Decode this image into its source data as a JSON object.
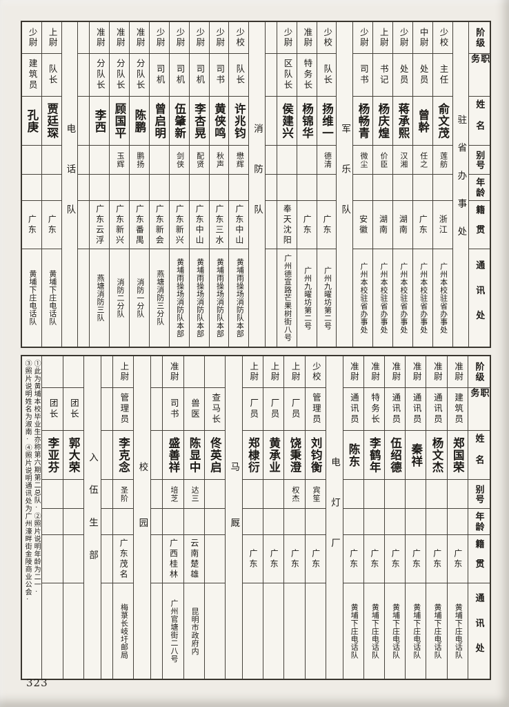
{
  "page": {
    "number": "323",
    "description": "黄埔军校同学录 roster page, two vertical-text tables read right-to-left"
  },
  "colors": {
    "page_background": "#efece6",
    "paper": "#f7f5ef",
    "grid_line": "#45413a",
    "text": "#1c1a17"
  },
  "header_column": {
    "labels": [
      "阶级",
      "职务",
      "姓名",
      "别号",
      "年龄",
      "籍贯",
      "通讯处"
    ]
  },
  "tables": [
    {
      "name": "top-roster",
      "columns": [
        {
          "type": "header"
        },
        {
          "type": "label",
          "label": "驻省办事处"
        },
        {
          "type": "person",
          "rank": "少校",
          "position": "主任",
          "name": "俞文茂",
          "alias": "莲舫",
          "age": "",
          "native": "浙江",
          "address": "广州本校驻省办事处"
        },
        {
          "type": "person",
          "rank": "中尉",
          "position": "处员",
          "name": "曾幹",
          "alias": "任之",
          "age": "",
          "native": "广东",
          "address": "广州本校驻省办事处"
        },
        {
          "type": "person",
          "rank": "少尉",
          "position": "处员",
          "name": "蒋承熙",
          "alias": "汉湘",
          "age": "",
          "native": "湖南",
          "address": "广州本校驻省办事处"
        },
        {
          "type": "person",
          "rank": "上尉",
          "position": "书记",
          "name": "杨庆煌",
          "alias": "价臣",
          "age": "",
          "native": "湖南",
          "address": "广州本校驻省办事处"
        },
        {
          "type": "person",
          "rank": "少尉",
          "position": "司书",
          "name": "杨畅青",
          "alias": "微尘",
          "age": "",
          "native": "安徽",
          "address": "广州本校驻省办事处"
        },
        {
          "type": "label",
          "label": "军乐队"
        },
        {
          "type": "person",
          "rank": "少校",
          "position": "队长",
          "name": "扬维一",
          "alias": "德清",
          "age": "",
          "native": "广东",
          "address": "广州九曜坊第二号"
        },
        {
          "type": "person",
          "rank": "准尉",
          "position": "特务长",
          "name": "杨锦华",
          "alias": "",
          "age": "",
          "native": "广东",
          "address": "广州九曜坊第二号"
        },
        {
          "type": "person",
          "rank": "少尉",
          "position": "区队长",
          "name": "侯建兴",
          "alias": "",
          "age": "",
          "native": "奉天沈阳",
          "address": "广州德宣路芒果树街八号"
        },
        {
          "type": "spacer"
        },
        {
          "type": "label",
          "label": "消防队"
        },
        {
          "type": "person",
          "rank": "少校",
          "position": "队长",
          "name": "许兆钧",
          "alias": "懋辉",
          "age": "",
          "native": "广东中山",
          "address": "黄埔雨操场消防队本部"
        },
        {
          "type": "person",
          "rank": "少尉",
          "position": "司书",
          "name": "黄侠鸣",
          "alias": "秋声",
          "age": "",
          "native": "广东三水",
          "address": "黄埔雨操场消防队本部"
        },
        {
          "type": "person",
          "rank": "少尉",
          "position": "司机",
          "name": "李杏晃",
          "alias": "配贤",
          "age": "",
          "native": "广东中山",
          "address": "黄埔雨操场消防队本部"
        },
        {
          "type": "person",
          "rank": "少尉",
          "position": "司机",
          "name": "伍肇新",
          "alias": "剑侠",
          "age": "",
          "native": "广东新兴",
          "address": "黄埔雨操场消防队本部"
        },
        {
          "type": "person",
          "rank": "少尉",
          "position": "司机",
          "name": "曾启明",
          "alias": "",
          "age": "",
          "native": "广东新会",
          "address": "燕塘消防三分队"
        },
        {
          "type": "person",
          "rank": "准尉",
          "position": "分队长",
          "name": "陈鹏",
          "alias": "鹏扬",
          "age": "",
          "native": "广东番禺",
          "address": "消防一分队"
        },
        {
          "type": "person",
          "rank": "准尉",
          "position": "分队长",
          "name": "顾国平",
          "alias": "玉辉",
          "age": "",
          "native": "广东新兴",
          "address": "消防二分队"
        },
        {
          "type": "person",
          "rank": "准尉",
          "position": "分队长",
          "name": "李西",
          "alias": "",
          "age": "",
          "native": "广东云浮",
          "address": "燕塘消防三队"
        },
        {
          "type": "spacer"
        },
        {
          "type": "label",
          "label": "电话队"
        },
        {
          "type": "person",
          "rank": "上尉",
          "position": "队长",
          "name": "贾廷琛",
          "alias": "",
          "age": "",
          "native": "广东",
          "address": "黄埔下庄电话队"
        },
        {
          "type": "person",
          "rank": "少尉",
          "position": "建筑员",
          "name": "孔庚",
          "alias": "",
          "age": "",
          "native": "广东",
          "address": "黄埔下庄电话队"
        }
      ]
    },
    {
      "name": "bottom-roster",
      "columns": [
        {
          "type": "header"
        },
        {
          "type": "person",
          "rank": "准尉",
          "position": "建筑员",
          "name": "郑国荣",
          "alias": "",
          "age": "",
          "native": "广东",
          "address": "黄埔下庄电话队"
        },
        {
          "type": "person",
          "rank": "准尉",
          "position": "通讯员",
          "name": "杨文杰",
          "alias": "",
          "age": "",
          "native": "广东",
          "address": "黄埔下庄电话队"
        },
        {
          "type": "person",
          "rank": "准尉",
          "position": "通讯员",
          "name": "秦祥",
          "alias": "",
          "age": "",
          "native": "广东",
          "address": "黄埔下庄电话队"
        },
        {
          "type": "person",
          "rank": "准尉",
          "position": "通讯员",
          "name": "伍绍德",
          "alias": "",
          "age": "",
          "native": "广东",
          "address": "黄埔下庄电话队"
        },
        {
          "type": "person",
          "rank": "准尉",
          "position": "特务长",
          "name": "李鹤年",
          "alias": "",
          "age": "",
          "native": "广东",
          "address": "黄埔下庄电话队"
        },
        {
          "type": "person",
          "rank": "准尉",
          "position": "通讯员",
          "name": "陈东",
          "alias": "",
          "age": "",
          "native": "广东",
          "address": "黄埔下庄电话队"
        },
        {
          "type": "label",
          "label": "电灯厂"
        },
        {
          "type": "person",
          "rank": "少校",
          "position": "管理员",
          "name": "刘钧衡",
          "alias": "宾笙",
          "age": "",
          "native": "广东",
          "address": ""
        },
        {
          "type": "person",
          "rank": "上尉",
          "position": "厂员",
          "name": "饶秉澄",
          "alias": "权杰",
          "age": "",
          "native": "广东",
          "address": ""
        },
        {
          "type": "person",
          "rank": "上尉",
          "position": "厂员",
          "name": "黄承业",
          "alias": "",
          "age": "",
          "native": "广东",
          "address": ""
        },
        {
          "type": "person",
          "rank": "上尉",
          "position": "厂员",
          "name": "郑棣衍",
          "alias": "",
          "age": "",
          "native": "广东",
          "address": ""
        },
        {
          "type": "label",
          "label": "马厩"
        },
        {
          "type": "person",
          "rank": "",
          "position": "查马长",
          "name": "佟英启",
          "alias": "",
          "age": "",
          "native": "",
          "address": ""
        },
        {
          "type": "person",
          "rank": "",
          "position": "兽医",
          "name": "陈显中",
          "alias": "达三",
          "age": "",
          "native": "云南楚雄",
          "address": "昆明市政府内"
        },
        {
          "type": "person",
          "rank": "准尉",
          "position": "司书",
          "name": "盛善祥",
          "alias": "培芝",
          "age": "",
          "native": "广西桂林",
          "address": "广州官塘街二八号"
        },
        {
          "type": "spacer"
        },
        {
          "type": "label",
          "label": "校园"
        },
        {
          "type": "person",
          "rank": "上尉",
          "position": "管理员",
          "name": "李克念",
          "alias": "圣阶",
          "age": "",
          "native": "广东茂名",
          "address": "梅菉长岐圩邮局"
        },
        {
          "type": "spacer"
        },
        {
          "type": "label",
          "label": "入伍生部"
        },
        {
          "type": "person",
          "rank": "",
          "position": "团长",
          "name": "郭大荣",
          "alias": "",
          "age": "",
          "native": "",
          "address": ""
        },
        {
          "type": "person",
          "rank": "",
          "position": "团长",
          "name": "李亚芬",
          "alias": "",
          "age": "",
          "native": "",
          "address": ""
        },
        {
          "type": "note",
          "lines": [
            "①此为黄埔本校毕业生亦称第六期第二总队·②照片说明年龄为二一·",
            "③照片说明姓名为淑南·④照片说明通讯处为广州濠畔街金陵商业公会·"
          ]
        }
      ]
    }
  ]
}
